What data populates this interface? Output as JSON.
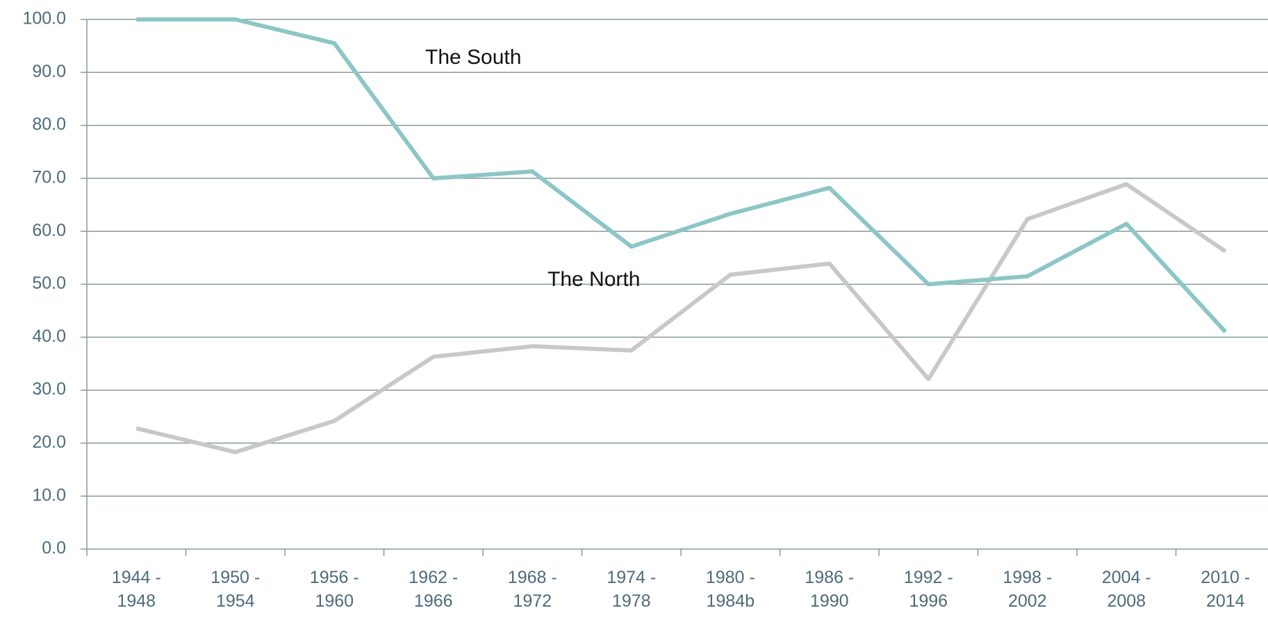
{
  "chart_data": {
    "type": "line",
    "categories": [
      "1944 -\n1948",
      "1950 -\n1954",
      "1956 -\n1960",
      "1962 -\n1966",
      "1968 -\n1972",
      "1974 -\n1978",
      "1980 -\n1984b",
      "1986 -\n1990",
      "1992 -\n1996",
      "1998 -\n2002",
      "2004 -\n2008",
      "2010 -\n2014"
    ],
    "series": [
      {
        "name": "The South",
        "color": "#8cc6c6",
        "values": [
          100,
          100,
          95.5,
          70,
          71.3,
          57.1,
          63.3,
          68.2,
          50,
          51.5,
          61.4,
          41
        ]
      },
      {
        "name": "The North",
        "color": "#c8c8c8",
        "values": [
          22.8,
          18.3,
          24.2,
          36.3,
          38.3,
          37.5,
          51.8,
          53.9,
          32.1,
          62.3,
          68.9,
          56.2
        ]
      }
    ],
    "ylim": [
      0,
      100
    ],
    "yticks": [
      {
        "value": 0,
        "label": "0.0"
      },
      {
        "value": 10,
        "label": "10.0"
      },
      {
        "value": 20,
        "label": "20.0"
      },
      {
        "value": 30,
        "label": "30.0"
      },
      {
        "value": 40,
        "label": "40.0"
      },
      {
        "value": 50,
        "label": "50.0"
      },
      {
        "value": 60,
        "label": "60.0"
      },
      {
        "value": 70,
        "label": "70.0"
      },
      {
        "value": 80,
        "label": "80.0"
      },
      {
        "value": 90,
        "label": "90.0"
      },
      {
        "value": 100,
        "label": "100.0"
      }
    ],
    "grid": true
  }
}
